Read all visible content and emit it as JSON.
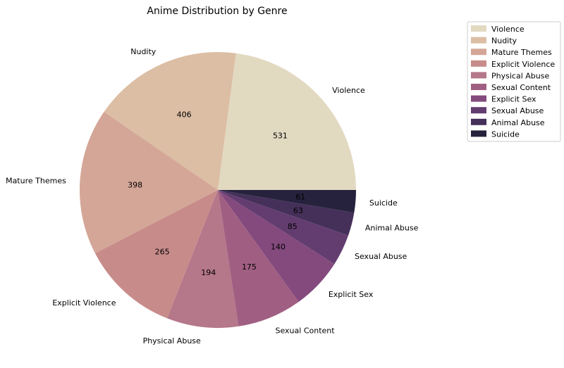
{
  "chart_data": {
    "type": "pie",
    "title": "Anime Distribution by Genre",
    "categories": [
      "Violence",
      "Nudity",
      "Mature Themes",
      "Explicit Violence",
      "Physical Abuse",
      "Sexual Content",
      "Explicit Sex",
      "Sexual Abuse",
      "Animal Abuse",
      "Suicide"
    ],
    "values": [
      531,
      406,
      398,
      265,
      194,
      175,
      140,
      85,
      63,
      61
    ],
    "colors": [
      "#e2d9c1",
      "#dbbea4",
      "#d4a697",
      "#c78c8a",
      "#b5778a",
      "#a05f82",
      "#844a7e",
      "#633d70",
      "#443059",
      "#26223d"
    ],
    "legend_position": "upper-right"
  }
}
